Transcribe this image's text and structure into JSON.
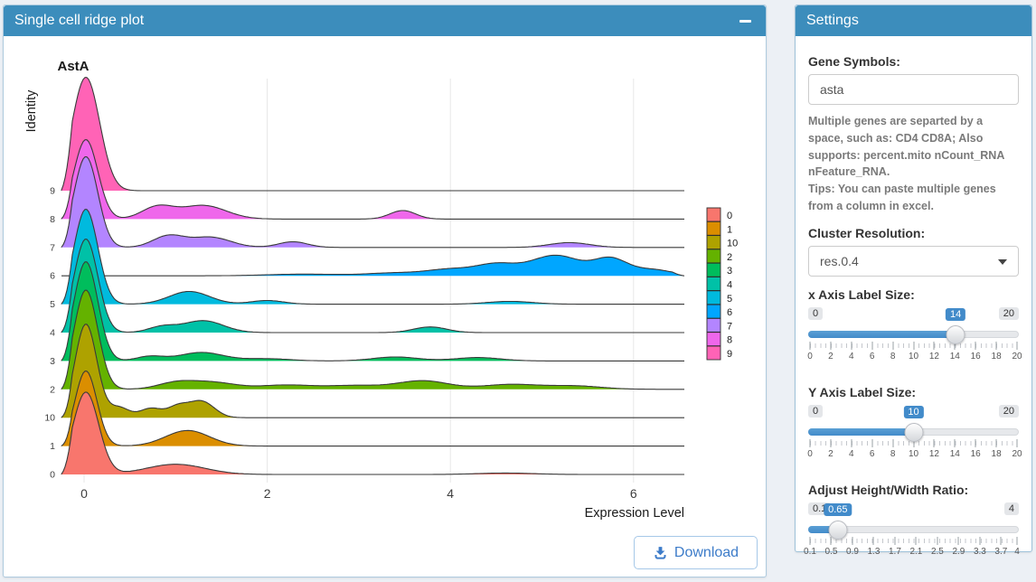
{
  "ridge_panel": {
    "title": "Single cell ridge plot",
    "download_label": "Download"
  },
  "settings": {
    "title": "Settings",
    "gene_symbols": {
      "label": "Gene Symbols:",
      "value": "asta",
      "help_line1": "Multiple genes are separted by a space, such as: CD4 CD8A; Also supports: percent.mito nCount_RNA nFeature_RNA.",
      "help_line2": "Tips: You can paste multiple genes from a column in excel."
    },
    "cluster_resolution": {
      "label": "Cluster Resolution:",
      "value": "res.0.4"
    },
    "sliders": [
      {
        "id": "x-axis-label-size",
        "label": "x Axis Label Size:",
        "min": 0,
        "max": 20,
        "value": 14,
        "min_label": "0",
        "max_label": "20",
        "value_label": "14",
        "ticks": [
          0,
          2,
          4,
          6,
          8,
          10,
          12,
          14,
          16,
          18,
          20
        ]
      },
      {
        "id": "y-axis-label-size",
        "label": "Y Axis Label Size:",
        "min": 0,
        "max": 20,
        "value": 10,
        "min_label": "0",
        "max_label": "20",
        "value_label": "10",
        "ticks": [
          0,
          2,
          4,
          6,
          8,
          10,
          12,
          14,
          16,
          18,
          20
        ]
      },
      {
        "id": "height-width-ratio",
        "label": "Adjust Height/Width Ratio:",
        "min": 0.1,
        "max": 4,
        "value": 0.65,
        "min_label": "0.1",
        "max_label": "4",
        "value_label": "0.65",
        "ticks": [
          0.1,
          0.5,
          0.9,
          1.3,
          1.7,
          2.1,
          2.5,
          2.9,
          3.3,
          3.7,
          4
        ]
      }
    ]
  },
  "chart_data": {
    "type": "ridgeline",
    "title": "AstA",
    "xlabel": "Expression Level",
    "ylabel": "Identity",
    "x_ticks": [
      0,
      2,
      4,
      6
    ],
    "xlim": [
      -0.25,
      6.55
    ],
    "grid": true,
    "legend_position": "right",
    "identities_top_to_bottom": [
      "9",
      "8",
      "7",
      "6",
      "5",
      "4",
      "3",
      "2",
      "10",
      "1",
      "0"
    ],
    "legend": [
      {
        "label": "0",
        "color": "#F8766D"
      },
      {
        "label": "1",
        "color": "#DB8E00"
      },
      {
        "label": "10",
        "color": "#AEA200"
      },
      {
        "label": "2",
        "color": "#64B200"
      },
      {
        "label": "3",
        "color": "#00BD5C"
      },
      {
        "label": "4",
        "color": "#00C1A7"
      },
      {
        "label": "5",
        "color": "#00BADE"
      },
      {
        "label": "6",
        "color": "#00A6FF"
      },
      {
        "label": "7",
        "color": "#B385FF"
      },
      {
        "label": "8",
        "color": "#EF67EB"
      },
      {
        "label": "9",
        "color": "#FF63B6"
      }
    ],
    "series": [
      {
        "identity": "9",
        "color": "#FF63B6",
        "peaks": [
          {
            "x": 0.02,
            "h": 4.0,
            "w": 0.15
          }
        ]
      },
      {
        "identity": "8",
        "color": "#EF67EB",
        "peaks": [
          {
            "x": 0.02,
            "h": 2.8,
            "w": 0.13
          },
          {
            "x": 0.8,
            "h": 0.42,
            "w": 0.17
          },
          {
            "x": 1.3,
            "h": 0.48,
            "w": 0.25
          },
          {
            "x": 3.48,
            "h": 0.3,
            "w": 0.14
          }
        ]
      },
      {
        "identity": "7",
        "color": "#B385FF",
        "peaks": [
          {
            "x": 0.02,
            "h": 3.2,
            "w": 0.13
          },
          {
            "x": 0.92,
            "h": 0.4,
            "w": 0.17
          },
          {
            "x": 1.38,
            "h": 0.36,
            "w": 0.22
          },
          {
            "x": 2.28,
            "h": 0.2,
            "w": 0.16
          },
          {
            "x": 5.3,
            "h": 0.17,
            "w": 0.22
          }
        ]
      },
      {
        "identity": "6",
        "color": "#00A6FF",
        "peaks": [
          {
            "x": 2.4,
            "h": 0.06,
            "w": 0.4
          },
          {
            "x": 3.4,
            "h": 0.1,
            "w": 0.3
          },
          {
            "x": 4.0,
            "h": 0.22,
            "w": 0.25
          },
          {
            "x": 4.5,
            "h": 0.38,
            "w": 0.22
          },
          {
            "x": 5.15,
            "h": 0.72,
            "w": 0.28
          },
          {
            "x": 5.75,
            "h": 0.56,
            "w": 0.18
          },
          {
            "x": 6.2,
            "h": 0.22,
            "w": 0.22
          }
        ]
      },
      {
        "identity": "5",
        "color": "#00BADE",
        "peaks": [
          {
            "x": 0.02,
            "h": 3.35,
            "w": 0.13
          },
          {
            "x": 1.15,
            "h": 0.45,
            "w": 0.22
          },
          {
            "x": 2.0,
            "h": 0.13,
            "w": 0.18
          },
          {
            "x": 4.65,
            "h": 0.1,
            "w": 0.25
          }
        ]
      },
      {
        "identity": "4",
        "color": "#00C1A7",
        "peaks": [
          {
            "x": 0.02,
            "h": 3.3,
            "w": 0.13
          },
          {
            "x": 0.85,
            "h": 0.2,
            "w": 0.15
          },
          {
            "x": 1.3,
            "h": 0.42,
            "w": 0.22
          },
          {
            "x": 3.78,
            "h": 0.2,
            "w": 0.18
          }
        ]
      },
      {
        "identity": "3",
        "color": "#00BD5C",
        "peaks": [
          {
            "x": 0.02,
            "h": 3.5,
            "w": 0.13
          },
          {
            "x": 0.72,
            "h": 0.16,
            "w": 0.15
          },
          {
            "x": 1.28,
            "h": 0.3,
            "w": 0.24
          },
          {
            "x": 2.0,
            "h": 0.08,
            "w": 0.25
          },
          {
            "x": 3.4,
            "h": 0.14,
            "w": 0.25
          },
          {
            "x": 4.3,
            "h": 0.12,
            "w": 0.25
          }
        ]
      },
      {
        "identity": "2",
        "color": "#64B200",
        "peaks": [
          {
            "x": 0.02,
            "h": 3.5,
            "w": 0.13
          },
          {
            "x": 1.0,
            "h": 0.22,
            "w": 0.2
          },
          {
            "x": 1.4,
            "h": 0.24,
            "w": 0.25
          },
          {
            "x": 2.2,
            "h": 0.15,
            "w": 0.3
          },
          {
            "x": 2.95,
            "h": 0.13,
            "w": 0.3
          },
          {
            "x": 3.7,
            "h": 0.3,
            "w": 0.28
          },
          {
            "x": 4.65,
            "h": 0.17,
            "w": 0.3
          },
          {
            "x": 5.35,
            "h": 0.12,
            "w": 0.3
          }
        ]
      },
      {
        "identity": "10",
        "color": "#AEA200",
        "peaks": [
          {
            "x": 0.02,
            "h": 3.3,
            "w": 0.12
          },
          {
            "x": 0.38,
            "h": 0.36,
            "w": 0.11
          },
          {
            "x": 0.73,
            "h": 0.33,
            "w": 0.12
          },
          {
            "x": 1.02,
            "h": 0.36,
            "w": 0.11
          },
          {
            "x": 1.28,
            "h": 0.58,
            "w": 0.14
          }
        ]
      },
      {
        "identity": "1",
        "color": "#DB8E00",
        "peaks": [
          {
            "x": 0.02,
            "h": 2.65,
            "w": 0.12
          },
          {
            "x": 1.13,
            "h": 0.55,
            "w": 0.24
          }
        ]
      },
      {
        "identity": "0",
        "color": "#F8766D",
        "peaks": [
          {
            "x": 0.02,
            "h": 2.9,
            "w": 0.14
          },
          {
            "x": 1.0,
            "h": 0.36,
            "w": 0.32
          },
          {
            "x": 4.6,
            "h": 0.05,
            "w": 0.3
          }
        ]
      }
    ]
  }
}
